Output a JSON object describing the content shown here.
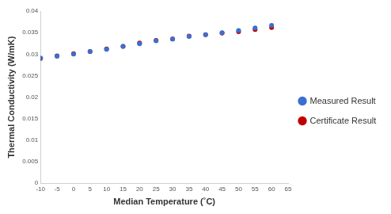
{
  "chart_data": {
    "type": "scatter",
    "x_label": "Median Temperature (˚C)",
    "y_label": "Thermal Conductivity (W/mK)",
    "x": [
      -10,
      -5,
      0,
      5,
      10,
      15,
      20,
      25,
      30,
      35,
      40,
      45,
      50,
      55,
      60
    ],
    "series": [
      {
        "name": "Measured Result",
        "color": "#3a6fd0",
        "marker": "circle",
        "values": [
          0.0291,
          0.0295,
          0.03,
          0.0306,
          0.0311,
          0.0318,
          0.0324,
          0.0331,
          0.0335,
          0.0341,
          0.0345,
          0.035,
          0.0355,
          0.0361,
          0.0367
        ]
      },
      {
        "name": "Certificate Result",
        "color": "#c00000",
        "marker": "circle",
        "values": [
          0.029,
          0.0296,
          0.0301,
          0.0306,
          0.0312,
          0.0318,
          0.0326,
          0.0332,
          0.0335,
          0.0342,
          0.0345,
          0.0349,
          0.0352,
          0.0357,
          0.0362
        ]
      }
    ],
    "xlim": [
      -10,
      65
    ],
    "xticks": [
      -10,
      -5,
      0,
      5,
      10,
      15,
      20,
      25,
      30,
      35,
      40,
      45,
      50,
      55,
      60,
      65
    ],
    "ylim": [
      0,
      0.04
    ],
    "yticks": [
      0,
      0.005,
      0.01,
      0.015,
      0.02,
      0.025,
      0.03,
      0.035,
      0.04
    ],
    "grid": false,
    "legend": "right"
  }
}
